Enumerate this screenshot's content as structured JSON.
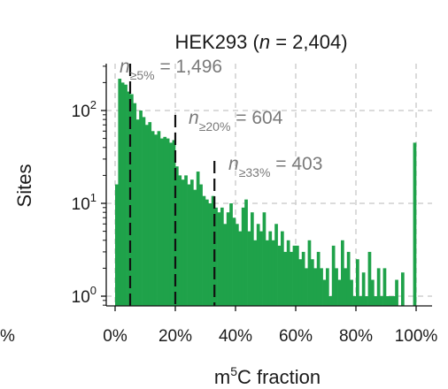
{
  "chart_data": {
    "type": "bar",
    "title": "HEK293 (n = 2,404)",
    "title_parts": {
      "pre": "HEK293 (",
      "n": "n",
      "post": " = 2,404)"
    },
    "xlabel": "m5C fraction",
    "xlabel_parts": {
      "base": "m",
      "sup": "5",
      "rest": "C fraction"
    },
    "ylabel": "Sites",
    "xlim": [
      0,
      1
    ],
    "ylim": [
      0.75,
      350
    ],
    "y_scale": "log",
    "grid": true,
    "x_ticks": [
      {
        "value": 0,
        "label": "0%"
      },
      {
        "value": 0.2,
        "label": "20%"
      },
      {
        "value": 0.4,
        "label": "40%"
      },
      {
        "value": 0.6,
        "label": "60%"
      },
      {
        "value": 0.8,
        "label": "80%"
      },
      {
        "value": 1.0,
        "label": "100%"
      }
    ],
    "y_ticks": [
      {
        "value": 1,
        "base": "10",
        "exp": "0"
      },
      {
        "value": 10,
        "base": "10",
        "exp": "1"
      },
      {
        "value": 100,
        "base": "10",
        "exp": "2"
      }
    ],
    "left_edge_fragment": "%",
    "bar_color": "#1fa24a",
    "bin_width": 0.01,
    "bin_starts": [
      0.0,
      0.01,
      0.02,
      0.03,
      0.04,
      0.05,
      0.06,
      0.07,
      0.08,
      0.09,
      0.1,
      0.11,
      0.12,
      0.13,
      0.14,
      0.15,
      0.16,
      0.17,
      0.18,
      0.19,
      0.2,
      0.21,
      0.22,
      0.23,
      0.24,
      0.25,
      0.26,
      0.27,
      0.28,
      0.29,
      0.3,
      0.31,
      0.32,
      0.33,
      0.34,
      0.35,
      0.36,
      0.37,
      0.38,
      0.39,
      0.4,
      0.41,
      0.42,
      0.43,
      0.44,
      0.45,
      0.46,
      0.47,
      0.48,
      0.49,
      0.5,
      0.51,
      0.52,
      0.53,
      0.54,
      0.55,
      0.56,
      0.57,
      0.58,
      0.59,
      0.6,
      0.61,
      0.62,
      0.63,
      0.64,
      0.65,
      0.66,
      0.67,
      0.68,
      0.69,
      0.7,
      0.71,
      0.72,
      0.73,
      0.74,
      0.75,
      0.76,
      0.77,
      0.78,
      0.79,
      0.8,
      0.81,
      0.82,
      0.83,
      0.84,
      0.85,
      0.86,
      0.87,
      0.88,
      0.89,
      0.9,
      0.91,
      0.92,
      0.93,
      0.94,
      0.95,
      0.96,
      0.97,
      0.98,
      0.99
    ],
    "values": [
      16,
      220,
      200,
      190,
      160,
      150,
      120,
      80,
      100,
      85,
      70,
      75,
      60,
      55,
      60,
      50,
      52,
      50,
      45,
      48,
      25,
      20,
      18,
      20,
      16,
      18,
      14,
      22,
      16,
      12,
      11,
      10,
      12,
      9,
      8,
      9,
      6,
      8,
      10,
      7,
      6,
      5,
      9,
      11,
      5,
      8,
      4,
      6,
      5,
      8,
      4,
      5,
      4,
      6,
      3.5,
      5,
      3,
      4,
      3,
      3.5,
      3.5,
      2.5,
      3,
      2,
      4,
      2.5,
      2,
      3,
      2,
      1.5,
      2,
      1,
      3.5,
      2,
      1.5,
      4,
      2,
      3,
      1.5,
      1,
      2.5,
      1,
      1.8,
      1,
      3,
      1.5,
      1,
      2,
      1,
      2,
      1,
      1,
      1,
      1.5,
      0,
      1.8,
      0,
      0,
      0,
      45
    ],
    "thresholds": [
      {
        "x": 0.05,
        "label_base": "n",
        "label_sub": "≥5%",
        "label_value": " = 1,496"
      },
      {
        "x": 0.2,
        "label_base": "n",
        "label_sub": "≥20%",
        "label_value": " = 604"
      },
      {
        "x": 0.33,
        "label_base": "n",
        "label_sub": "≥33%",
        "label_value": " = 403"
      }
    ]
  }
}
